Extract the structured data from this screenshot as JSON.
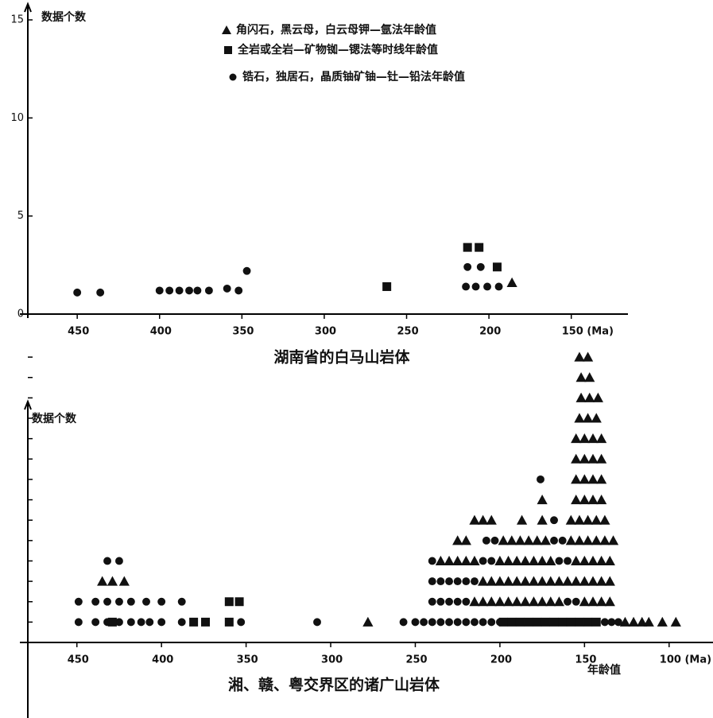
{
  "chart_data": [
    {
      "type": "scatter",
      "title": "湖南省的白马山岩体",
      "y_label": "数据个数",
      "xlim": [
        480,
        118
      ],
      "ylim": [
        0,
        15
      ],
      "xticks": [
        450,
        400,
        350,
        300,
        250,
        200,
        {
          "value": 150,
          "label": "150 (Ma)"
        }
      ],
      "yticks": [
        0,
        5,
        10,
        15
      ],
      "legend": "top",
      "series": [
        {
          "name": "角闪石，黑云母，白云母钾—氩法年龄值",
          "marker": "triangle",
          "color": "#111",
          "x": [
            186
          ],
          "y": [
            1.6
          ]
        },
        {
          "name": "全岩或全岩—矿物铷—锶法等时线年龄值",
          "marker": "square",
          "color": "#111",
          "x": [
            262,
            213,
            206,
            195
          ],
          "y": [
            1.4,
            3.4,
            3.4,
            2.4
          ]
        },
        {
          "name": "锆石，独居石，晶质铀矿铀—钍—铅法年龄值",
          "marker": "circle",
          "color": "#111",
          "x": [
            450,
            436,
            400,
            394,
            388,
            382,
            377,
            370,
            359,
            352,
            347,
            214,
            208,
            201,
            194,
            213,
            205
          ],
          "y": [
            1.1,
            1.1,
            1.2,
            1.2,
            1.2,
            1.2,
            1.2,
            1.2,
            1.3,
            1.2,
            2.2,
            1.4,
            1.4,
            1.4,
            1.4,
            2.4,
            2.4
          ]
        }
      ]
    },
    {
      "type": "scatter",
      "title": "湘、赣、粤交界区的诸广山岩体",
      "y_label": "数据个数",
      "x_label": "年龄值",
      "xlim": [
        479,
        75
      ],
      "ylim": [
        0,
        14.2
      ],
      "xticks": [
        450,
        400,
        350,
        300,
        250,
        200,
        150,
        {
          "value": 100,
          "label": "100 (Ma)"
        }
      ],
      "yticks": [
        1,
        2,
        3,
        4,
        5,
        6,
        7,
        8,
        9,
        10,
        11,
        12,
        13,
        14
      ],
      "series": [
        {
          "marker": "triangle",
          "color": "#111",
          "x": [
            435,
            429,
            422,
            278,
            126,
            121,
            116,
            112,
            104,
            96,
            215,
            210,
            205,
            200,
            195,
            190,
            185,
            180,
            175,
            170,
            165,
            150,
            145,
            140,
            135,
            210,
            205,
            200,
            195,
            190,
            185,
            180,
            175,
            170,
            165,
            160,
            155,
            150,
            145,
            140,
            135,
            235,
            230,
            225,
            220,
            215,
            200,
            195,
            190,
            185,
            180,
            175,
            170,
            155,
            150,
            145,
            140,
            135,
            225,
            220,
            198,
            193,
            188,
            183,
            178,
            173,
            158,
            153,
            148,
            143,
            138,
            133,
            215,
            210,
            205,
            187,
            175,
            158,
            153,
            148,
            143,
            138,
            175,
            155,
            150,
            145,
            140,
            155,
            150,
            145,
            140,
            155,
            150,
            145,
            140,
            155,
            150,
            145,
            140,
            153,
            148,
            143,
            152,
            147,
            142,
            152,
            147,
            153,
            148
          ],
          "y": [
            3,
            3,
            3,
            1,
            1,
            1,
            1,
            1,
            1,
            1,
            2,
            2,
            2,
            2,
            2,
            2,
            2,
            2,
            2,
            2,
            2,
            2,
            2,
            2,
            2,
            3,
            3,
            3,
            3,
            3,
            3,
            3,
            3,
            3,
            3,
            3,
            3,
            3,
            3,
            3,
            3,
            4,
            4,
            4,
            4,
            4,
            4,
            4,
            4,
            4,
            4,
            4,
            4,
            4,
            4,
            4,
            4,
            4,
            5,
            5,
            5,
            5,
            5,
            5,
            5,
            5,
            5,
            5,
            5,
            5,
            5,
            5,
            6,
            6,
            6,
            6,
            6,
            6,
            6,
            6,
            6,
            6,
            7,
            7,
            7,
            7,
            7,
            8,
            8,
            8,
            8,
            9,
            9,
            9,
            9,
            10,
            10,
            10,
            10,
            11,
            11,
            11,
            12,
            12,
            12,
            13,
            13,
            14,
            14
          ]
        },
        {
          "marker": "circle",
          "color": "#111",
          "x": [
            449,
            439,
            432,
            425,
            418,
            412,
            407,
            400,
            388,
            353,
            449,
            439,
            432,
            425,
            418,
            409,
            400,
            388,
            432,
            425,
            308,
            257,
            250,
            245,
            240,
            235,
            230,
            225,
            220,
            215,
            210,
            205,
            200,
            138,
            134,
            130,
            240,
            235,
            230,
            225,
            220,
            160,
            155,
            240,
            235,
            230,
            225,
            220,
            215,
            240,
            210,
            205,
            165,
            160,
            208,
            203,
            168,
            163,
            168,
            176
          ],
          "y": [
            1,
            1,
            1,
            1,
            1,
            1,
            1,
            1,
            1,
            1,
            2,
            2,
            2,
            2,
            2,
            2,
            2,
            2,
            4,
            4,
            1,
            1,
            1,
            1,
            1,
            1,
            1,
            1,
            1,
            1,
            1,
            1,
            1,
            1,
            1,
            1,
            2,
            2,
            2,
            2,
            2,
            2,
            2,
            3,
            3,
            3,
            3,
            3,
            3,
            4,
            4,
            4,
            4,
            4,
            5,
            5,
            5,
            5,
            6,
            8
          ]
        },
        {
          "marker": "square",
          "color": "#111",
          "x": [
            429,
            381,
            374,
            360,
            360,
            354,
            198,
            193,
            188,
            183,
            178,
            173,
            168,
            163,
            158,
            153,
            148,
            143
          ],
          "y": [
            1,
            1,
            1,
            1,
            2,
            2,
            1,
            1,
            1,
            1,
            1,
            1,
            1,
            1,
            1,
            1,
            1,
            1
          ]
        }
      ]
    }
  ]
}
